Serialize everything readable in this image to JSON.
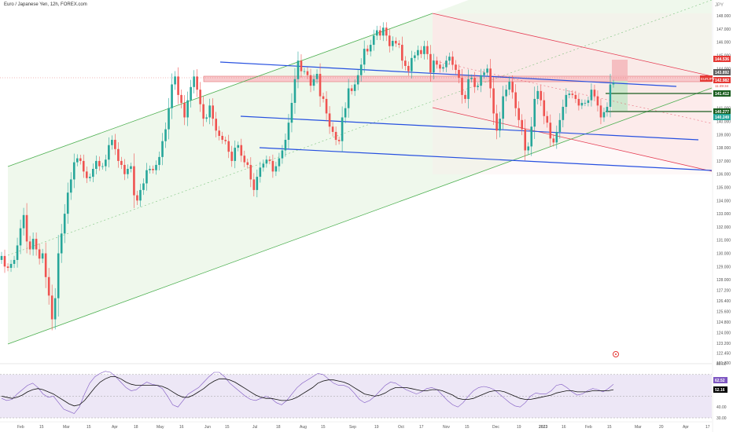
{
  "header": {
    "symbol_title": "Euro / Japanese Yen, 12h, FOREX.com",
    "currency": "JPY"
  },
  "chart_data": [
    {
      "type": "line",
      "subtype": "candlestick",
      "title": "Euro / Japanese Yen, 12h, FOREX.com",
      "ylim": [
        121.7,
        148.6
      ],
      "y_ticks": [
        148.0,
        147.0,
        146.0,
        145.0,
        144.0,
        143.0,
        142.0,
        141.0,
        140.0,
        139.0,
        138.0,
        137.0,
        136.0,
        135.0,
        134.0,
        133.0,
        132.0,
        131.0,
        130.0,
        129.0,
        128.0,
        127.2,
        126.4,
        125.6,
        124.8,
        124.0,
        123.2,
        122.45,
        121.7
      ],
      "y_tick_labels": [
        "148.000",
        "147.000",
        "146.000",
        "145.000",
        "144.000",
        "143.000",
        "142.000",
        "141.000",
        "140.000",
        "139.000",
        "138.000",
        "137.000",
        "136.000",
        "135.000",
        "134.000",
        "133.000",
        "132.000",
        "131.000",
        "130.000",
        "129.000",
        "128.000",
        "127.200",
        "126.400",
        "125.600",
        "124.800",
        "124.000",
        "123.200",
        "122.450",
        "121.700"
      ],
      "x_tick_labels": [
        "Feb",
        "15",
        "Mar",
        "15",
        "Apr",
        "18",
        "May",
        "16",
        "Jun",
        "15",
        "Jul",
        "18",
        "Aug",
        "15",
        "Sep",
        "19",
        "Oct",
        "17",
        "Nov",
        "15",
        "Dec",
        "19",
        "2023",
        "16",
        "Feb",
        "15",
        "Mar",
        "20",
        "Apr",
        "17"
      ],
      "series": [
        {
          "values": [
            129.8,
            129.0,
            128.9,
            129.2,
            129.5,
            130.6,
            131.9,
            132.9,
            130.9,
            130.3,
            131.1,
            130.3,
            129.6,
            130.0,
            128.2,
            126.8,
            125.0,
            126.6,
            130.0,
            131.5,
            133.0,
            134.6,
            135.6,
            136.9,
            137.2,
            137.0,
            136.2,
            135.7,
            135.8,
            136.4,
            137.0,
            136.6,
            136.6,
            137.1,
            138.2,
            138.6,
            137.9,
            137.0,
            136.7,
            136.0,
            136.4,
            136.6,
            134.4,
            134.0,
            134.8,
            135.3,
            136.3,
            136.4,
            136.3,
            136.7,
            137.3,
            138.5,
            139.4,
            141.0,
            142.8,
            143.4,
            142.0,
            141.4,
            140.3,
            141.6,
            142.6,
            143.4,
            142.4,
            141.3,
            140.2,
            140.3,
            141.2,
            140.2,
            139.3,
            138.9,
            138.6,
            138.5,
            137.7,
            137.0,
            138.0,
            138.2,
            137.4,
            136.9,
            136.7,
            135.6,
            134.8,
            135.8,
            136.5,
            136.8,
            137.1,
            137.0,
            136.2,
            136.6,
            137.2,
            137.8,
            138.6,
            139.9,
            141.4,
            143.2,
            144.6,
            143.8,
            143.8,
            143.5,
            142.7,
            143.2,
            143.6,
            141.9,
            141.7,
            140.6,
            139.6,
            139.2,
            138.6,
            138.5,
            140.3,
            141.0,
            142.5,
            142.3,
            142.8,
            143.5,
            144.3,
            145.5,
            145.3,
            145.8,
            146.5,
            146.9,
            146.5,
            147.1,
            146.5,
            145.7,
            146.1,
            145.9,
            145.8,
            144.6,
            144.2,
            143.8,
            144.8,
            145.0,
            145.4,
            145.1,
            145.7,
            145.1,
            143.7,
            144.6,
            144.3,
            144.0,
            144.1,
            144.6,
            144.9,
            144.3,
            143.9,
            143.3,
            142.0,
            141.7,
            143.2,
            143.3,
            142.6,
            142.7,
            143.5,
            143.7,
            144.0,
            142.5,
            140.6,
            139.3,
            140.2,
            141.9,
            142.4,
            143.0,
            142.2,
            141.0,
            140.1,
            139.4,
            137.8,
            138.1,
            139.6,
            141.7,
            142.3,
            141.6,
            140.4,
            139.9,
            138.7,
            138.4,
            139.2,
            140.1,
            141.1,
            142.0,
            142.1,
            142.0,
            141.7,
            141.2,
            141.4,
            141.4,
            141.6,
            142.4,
            141.9,
            141.2,
            140.3,
            140.7,
            141.1,
            142.8,
            142.9
          ]
        }
      ],
      "annotations": {
        "last_price_label": "EURJPY",
        "last_price": "142.982",
        "countdown": "11:49:34",
        "price_labels": [
          {
            "text": "144.536",
            "color": "#e53935"
          },
          {
            "text": "143.892",
            "color": "#616161"
          },
          {
            "text": "142.982",
            "color": "#e53935"
          },
          {
            "text": "141.412",
            "color": "#1b5e20"
          },
          {
            "text": "140.277",
            "color": "#1b5e20"
          },
          {
            "text": "140.249",
            "color": "#26a69a"
          }
        ]
      },
      "colors": {
        "up": "#26a69a",
        "down": "#ef5350",
        "channel_green": "#4caf50",
        "channel_red": "#e53950",
        "trendline_blue": "#2650e0",
        "support_green": "#1b5e20"
      }
    },
    {
      "type": "line",
      "subtype": "RSI",
      "ylim": [
        30,
        80
      ],
      "y_tick_labels": [
        "80.00",
        "40.00",
        "30.00"
      ],
      "series": [
        {
          "name": "RSI",
          "values": [
            48,
            46,
            47,
            52,
            56,
            60,
            62,
            58,
            52,
            49,
            50,
            44,
            38,
            36,
            34,
            40,
            52,
            62,
            68,
            71,
            73,
            72,
            68,
            63,
            58,
            55,
            56,
            60,
            63,
            61,
            60,
            57,
            50,
            42,
            40,
            46,
            52,
            55,
            58,
            63,
            68,
            72,
            72,
            68,
            62,
            58,
            54,
            50,
            47,
            46,
            48,
            50,
            48,
            44,
            42,
            46,
            52,
            58,
            62,
            65,
            68,
            71,
            70,
            66,
            62,
            60,
            60,
            58,
            53,
            47,
            44,
            46,
            50,
            55,
            60,
            63,
            62,
            59,
            56,
            54,
            52,
            54,
            57,
            58,
            56,
            51,
            46,
            42,
            40,
            44,
            50,
            55,
            58,
            59,
            58,
            56,
            52,
            48,
            44,
            41,
            40,
            44,
            50,
            53,
            52,
            52,
            55,
            60,
            61,
            58,
            54,
            51,
            52,
            55,
            57,
            56,
            54,
            57,
            61
          ]
        },
        {
          "name": "RSI-based MA",
          "values": [
            50,
            49,
            48,
            49,
            51,
            54,
            56,
            57,
            56,
            54,
            52,
            49,
            46,
            43,
            41,
            42,
            46,
            52,
            58,
            63,
            66,
            68,
            68,
            66,
            63,
            61,
            60,
            60,
            60,
            60,
            60,
            59,
            57,
            54,
            51,
            49,
            49,
            51,
            54,
            57,
            61,
            64,
            66,
            66,
            65,
            63,
            60,
            57,
            54,
            51,
            49,
            48,
            48,
            47,
            46,
            46,
            47,
            49,
            52,
            55,
            58,
            62,
            64,
            65,
            65,
            64,
            63,
            61,
            58,
            55,
            52,
            51,
            50,
            51,
            53,
            56,
            58,
            58,
            58,
            57,
            56,
            55,
            55,
            56,
            56,
            55,
            53,
            51,
            48,
            47,
            47,
            48,
            50,
            52,
            54,
            55,
            55,
            54,
            52,
            50,
            48,
            47,
            47,
            48,
            49,
            50,
            51,
            53,
            54,
            55,
            55,
            54,
            54,
            54,
            55,
            55,
            55,
            55,
            56
          ]
        }
      ],
      "annotations": {
        "labels": [
          {
            "text": "62.52",
            "color": "#7e57c2"
          },
          {
            "text": "52.16",
            "color": "#000000"
          }
        ]
      },
      "colors": {
        "rsi": "#7e57c2",
        "ma": "#111111",
        "band": "#ede7f6"
      }
    }
  ]
}
